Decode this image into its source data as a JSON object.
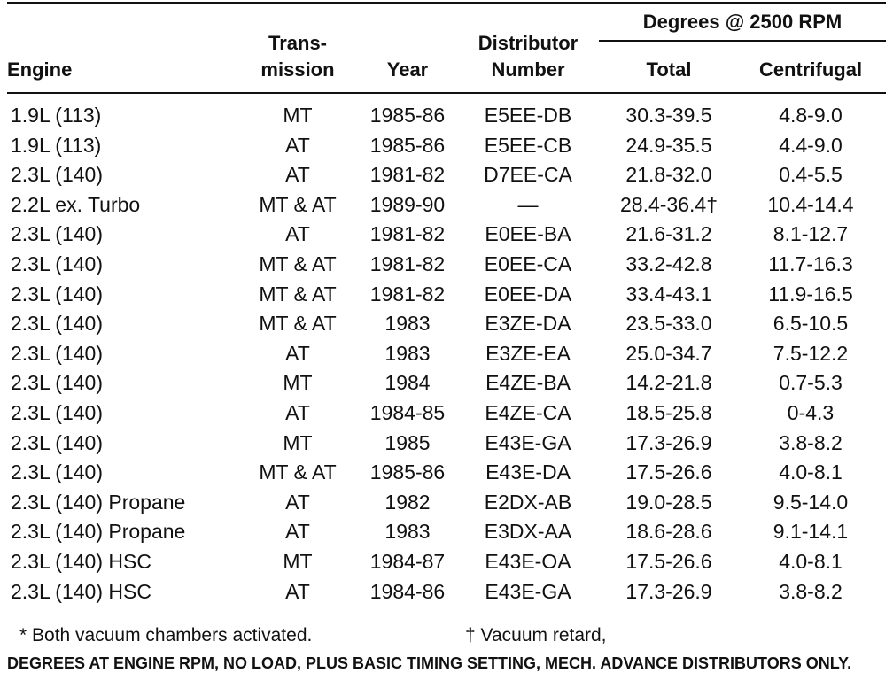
{
  "header": {
    "engine": "Engine",
    "transmission": [
      "Trans-",
      "mission"
    ],
    "year": "Year",
    "distributor": [
      "Distributor",
      "Number"
    ],
    "group": "Degrees @ 2500 RPM",
    "total": "Total",
    "centrifugal": "Centrifugal"
  },
  "rows": [
    [
      "1.9L (113)",
      "MT",
      "1985-86",
      "E5EE-DB",
      "30.3-39.5",
      "4.8-9.0"
    ],
    [
      "1.9L (113)",
      "AT",
      "1985-86",
      "E5EE-CB",
      "24.9-35.5",
      "4.4-9.0"
    ],
    [
      "2.3L (140)",
      "AT",
      "1981-82",
      "D7EE-CA",
      "21.8-32.0",
      "0.4-5.5"
    ],
    [
      "2.2L ex. Turbo",
      "MT & AT",
      "1989-90",
      "—",
      "28.4-36.4†",
      "10.4-14.4"
    ],
    [
      "2.3L (140)",
      "AT",
      "1981-82",
      "E0EE-BA",
      "21.6-31.2",
      "8.1-12.7"
    ],
    [
      "2.3L (140)",
      "MT & AT",
      "1981-82",
      "E0EE-CA",
      "33.2-42.8",
      "11.7-16.3"
    ],
    [
      "2.3L (140)",
      "MT & AT",
      "1981-82",
      "E0EE-DA",
      "33.4-43.1",
      "11.9-16.5"
    ],
    [
      "2.3L (140)",
      "MT & AT",
      "1983",
      "E3ZE-DA",
      "23.5-33.0",
      "6.5-10.5"
    ],
    [
      "2.3L (140)",
      "AT",
      "1983",
      "E3ZE-EA",
      "25.0-34.7",
      "7.5-12.2"
    ],
    [
      "2.3L (140)",
      "MT",
      "1984",
      "E4ZE-BA",
      "14.2-21.8",
      "0.7-5.3"
    ],
    [
      "2.3L (140)",
      "AT",
      "1984-85",
      "E4ZE-CA",
      "18.5-25.8",
      "0-4.3"
    ],
    [
      "2.3L (140)",
      "MT",
      "1985",
      "E43E-GA",
      "17.3-26.9",
      "3.8-8.2"
    ],
    [
      "2.3L (140)",
      "MT & AT",
      "1985-86",
      "E43E-DA",
      "17.5-26.6",
      "4.0-8.1"
    ],
    [
      "2.3L (140) Propane",
      "AT",
      "1982",
      "E2DX-AB",
      "19.0-28.5",
      "9.5-14.0"
    ],
    [
      "2.3L (140) Propane",
      "AT",
      "1983",
      "E3DX-AA",
      "18.6-28.6",
      "9.1-14.1"
    ],
    [
      "2.3L (140) HSC",
      "MT",
      "1984-87",
      "E43E-OA",
      "17.5-26.6",
      "4.0-8.1"
    ],
    [
      "2.3L (140) HSC",
      "AT",
      "1984-86",
      "E43E-GA",
      "17.3-26.9",
      "3.8-8.2"
    ]
  ],
  "footnotes": {
    "note1": "* Both vacuum chambers activated.",
    "note2": "† Vacuum retard,",
    "note3": "DEGREES AT ENGINE RPM, NO LOAD, PLUS BASIC TIMING SETTING, MECH. ADVANCE DISTRIBUTORS ONLY."
  }
}
